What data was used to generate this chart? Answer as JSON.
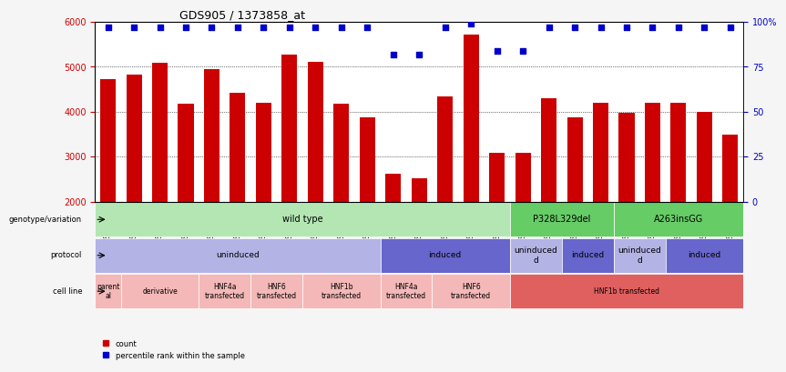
{
  "title": "GDS905 / 1373858_at",
  "samples": [
    "GSM27203",
    "GSM27204",
    "GSM27205",
    "GSM27206",
    "GSM27207",
    "GSM27150",
    "GSM27152",
    "GSM27156",
    "GSM27159",
    "GSM27063",
    "GSM27148",
    "GSM27151",
    "GSM27153",
    "GSM27157",
    "GSM27160",
    "GSM27147",
    "GSM27149",
    "GSM27161",
    "GSM27165",
    "GSM27163",
    "GSM27167",
    "GSM27169",
    "GSM27171",
    "GSM27170",
    "GSM27172"
  ],
  "counts": [
    4720,
    4830,
    5080,
    4170,
    4950,
    4430,
    4190,
    5270,
    5120,
    4180,
    3880,
    2620,
    2520,
    4350,
    5710,
    3080,
    3080,
    4300,
    3880,
    4200,
    3980,
    4200,
    4200,
    3990,
    3490
  ],
  "percentiles": [
    97,
    97,
    97,
    97,
    97,
    97,
    97,
    97,
    97,
    97,
    97,
    82,
    82,
    97,
    99,
    84,
    84,
    97,
    97,
    97,
    97,
    97,
    97,
    97,
    97
  ],
  "bar_color": "#cc0000",
  "dot_color": "#0000cc",
  "ylim_left": [
    2000,
    6000
  ],
  "ylim_right": [
    0,
    100
  ],
  "yticks_left": [
    2000,
    3000,
    4000,
    5000,
    6000
  ],
  "yticks_right": [
    0,
    25,
    50,
    75,
    100
  ],
  "ytick_labels_right": [
    "0",
    "25",
    "50",
    "75",
    "100%"
  ],
  "bg_color": "#f0f0f0",
  "plot_bg": "#ffffff",
  "grid_color": "#000000",
  "annotation_rows": {
    "genotype_variation": {
      "label": "genotype/variation",
      "segments": [
        {
          "text": "wild type",
          "start": 0,
          "end": 16,
          "color": "#b3e6b3"
        },
        {
          "text": "P328L329del",
          "start": 16,
          "end": 20,
          "color": "#66cc66"
        },
        {
          "text": "A263insGG",
          "start": 20,
          "end": 25,
          "color": "#66cc66"
        }
      ]
    },
    "protocol": {
      "label": "protocol",
      "segments": [
        {
          "text": "uninduced",
          "start": 0,
          "end": 11,
          "color": "#b3b3e6"
        },
        {
          "text": "induced",
          "start": 11,
          "end": 16,
          "color": "#6666cc"
        },
        {
          "text": "uninduced\nd",
          "start": 16,
          "end": 18,
          "color": "#b3b3e6"
        },
        {
          "text": "induced",
          "start": 18,
          "end": 20,
          "color": "#6666cc"
        },
        {
          "text": "uninduced\nd",
          "start": 20,
          "end": 22,
          "color": "#b3b3e6"
        },
        {
          "text": "induced",
          "start": 22,
          "end": 25,
          "color": "#6666cc"
        }
      ]
    },
    "cell_line": {
      "label": "cell line",
      "segments": [
        {
          "text": "parent\nal",
          "start": 0,
          "end": 1,
          "color": "#f4b8b8"
        },
        {
          "text": "derivative",
          "start": 1,
          "end": 4,
          "color": "#f4b8b8"
        },
        {
          "text": "HNF4a\ntransfected",
          "start": 4,
          "end": 6,
          "color": "#f4b8b8"
        },
        {
          "text": "HNF6\ntransfected",
          "start": 6,
          "end": 8,
          "color": "#f4b8b8"
        },
        {
          "text": "HNF1b\ntransfected",
          "start": 8,
          "end": 11,
          "color": "#f4b8b8"
        },
        {
          "text": "HNF4a\ntransfected",
          "start": 11,
          "end": 13,
          "color": "#f4b8b8"
        },
        {
          "text": "HNF6\ntransfected",
          "start": 13,
          "end": 16,
          "color": "#f4b8b8"
        },
        {
          "text": "HNF1b transfected",
          "start": 16,
          "end": 25,
          "color": "#e06060"
        }
      ]
    }
  },
  "legend": [
    {
      "color": "#cc0000",
      "label": "count"
    },
    {
      "color": "#0000cc",
      "label": "percentile rank within the sample"
    }
  ]
}
